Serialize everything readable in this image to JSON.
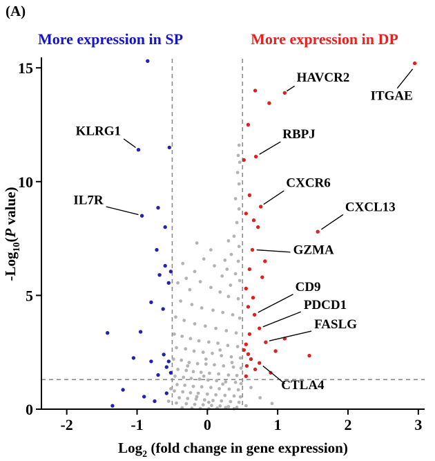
{
  "panel_label": "(A)",
  "headers": {
    "left": {
      "text": "More expression in SP",
      "color": "#1414cc"
    },
    "right": {
      "text": "More expression in DP",
      "color": "#e8211d"
    }
  },
  "chart_data": {
    "type": "scatter",
    "title": "",
    "xlabel_segments": [
      {
        "t": "Log"
      },
      {
        "t": "2",
        "sub": true
      },
      {
        "t": " (fold change in gene expression)"
      }
    ],
    "ylabel_segments": [
      {
        "t": "-Log"
      },
      {
        "t": "10",
        "sub": true
      },
      {
        "t": "("
      },
      {
        "t": "P",
        "italic": true
      },
      {
        "t": " value)"
      }
    ],
    "x_ticks": [
      -2,
      -1,
      0,
      1,
      2,
      3
    ],
    "y_ticks": [
      0,
      5,
      10,
      15
    ],
    "xlim": [
      -2.36,
      3.09
    ],
    "ylim": [
      0,
      15.4
    ],
    "grid": false,
    "thresholds": {
      "x": [
        -0.5,
        0.5
      ],
      "y": 1.3,
      "color": "#8a8a8a"
    },
    "axis_color": "#000000",
    "series": [
      {
        "name": "non-significant",
        "color": "#b3b3b3",
        "radius": 2.4,
        "points": [
          [
            0.45,
            11.6
          ],
          [
            0.44,
            11.15
          ],
          [
            0.46,
            10.85
          ],
          [
            0.43,
            10.4
          ],
          [
            0.45,
            9.9
          ],
          [
            0.4,
            9.25
          ],
          [
            0.45,
            8.8
          ],
          [
            0.42,
            8.2
          ],
          [
            0.38,
            7.6
          ],
          [
            0.45,
            7.15
          ],
          [
            0.3,
            7.4
          ],
          [
            0.34,
            6.8
          ],
          [
            0.44,
            6.5
          ],
          [
            0.28,
            6.15
          ],
          [
            0.4,
            5.95
          ],
          [
            0.46,
            5.65
          ],
          [
            0.33,
            5.45
          ],
          [
            0.21,
            5.85
          ],
          [
            0.1,
            6.3
          ],
          [
            -0.05,
            6.6
          ],
          [
            -0.18,
            6.05
          ],
          [
            -0.3,
            5.75
          ],
          [
            -0.42,
            5.55
          ],
          [
            -0.25,
            5.25
          ],
          [
            -0.1,
            5.6
          ],
          [
            0.05,
            5.35
          ],
          [
            0.18,
            5.15
          ],
          [
            0.3,
            4.95
          ],
          [
            0.44,
            4.85
          ],
          [
            -0.38,
            4.75
          ],
          [
            -0.22,
            4.6
          ],
          [
            -0.08,
            4.45
          ],
          [
            0.08,
            4.35
          ],
          [
            0.22,
            4.25
          ],
          [
            0.36,
            4.15
          ],
          [
            0.46,
            4.0
          ],
          [
            -0.45,
            4.05
          ],
          [
            -0.33,
            3.9
          ],
          [
            -0.18,
            3.75
          ],
          [
            -0.03,
            3.65
          ],
          [
            0.12,
            3.55
          ],
          [
            0.27,
            3.45
          ],
          [
            0.41,
            3.35
          ],
          [
            -0.47,
            3.3
          ],
          [
            -0.36,
            3.2
          ],
          [
            -0.24,
            3.1
          ],
          [
            -0.12,
            3.0
          ],
          [
            0.02,
            2.95
          ],
          [
            0.15,
            2.9
          ],
          [
            0.29,
            2.8
          ],
          [
            0.43,
            2.75
          ],
          [
            -0.44,
            2.7
          ],
          [
            -0.31,
            2.65
          ],
          [
            -0.19,
            2.55
          ],
          [
            -0.06,
            2.5
          ],
          [
            0.07,
            2.45
          ],
          [
            0.2,
            2.35
          ],
          [
            0.34,
            2.3
          ],
          [
            0.47,
            2.25
          ],
          [
            -0.48,
            2.2
          ],
          [
            -0.37,
            2.15
          ],
          [
            -0.26,
            2.05
          ],
          [
            -0.14,
            2.0
          ],
          [
            -0.02,
            1.98
          ],
          [
            0.1,
            1.95
          ],
          [
            0.23,
            1.9
          ],
          [
            0.37,
            1.85
          ],
          [
            0.48,
            1.8
          ],
          [
            -0.42,
            1.75
          ],
          [
            -0.3,
            1.7
          ],
          [
            -0.2,
            1.65
          ],
          [
            -0.09,
            1.62
          ],
          [
            0.03,
            1.58
          ],
          [
            0.16,
            1.55
          ],
          [
            0.3,
            1.5
          ],
          [
            0.42,
            1.48
          ],
          [
            -0.46,
            1.45
          ],
          [
            -0.34,
            1.4
          ],
          [
            -0.23,
            1.35
          ],
          [
            -0.11,
            1.32
          ],
          [
            0.01,
            1.28
          ],
          [
            0.13,
            1.25
          ],
          [
            0.26,
            1.2
          ],
          [
            0.4,
            1.18
          ],
          [
            0.48,
            1.12
          ],
          [
            -0.43,
            1.08
          ],
          [
            -0.32,
            1.05
          ],
          [
            -0.2,
            1.0
          ],
          [
            -0.08,
            0.98
          ],
          [
            0.05,
            0.95
          ],
          [
            0.17,
            0.9
          ],
          [
            0.31,
            0.88
          ],
          [
            0.44,
            0.85
          ],
          [
            -0.47,
            0.8
          ],
          [
            -0.35,
            0.76
          ],
          [
            -0.24,
            0.72
          ],
          [
            -0.13,
            0.7
          ],
          [
            0.0,
            0.66
          ],
          [
            0.12,
            0.63
          ],
          [
            0.25,
            0.6
          ],
          [
            0.38,
            0.58
          ],
          [
            0.47,
            0.54
          ],
          [
            -0.4,
            0.5
          ],
          [
            -0.28,
            0.47
          ],
          [
            -0.16,
            0.44
          ],
          [
            -0.04,
            0.41
          ],
          [
            0.08,
            0.38
          ],
          [
            0.2,
            0.36
          ],
          [
            0.33,
            0.33
          ],
          [
            0.45,
            0.3
          ],
          [
            -0.44,
            0.27
          ],
          [
            -0.3,
            0.24
          ],
          [
            -0.18,
            0.21
          ],
          [
            -0.06,
            0.19
          ],
          [
            0.06,
            0.16
          ],
          [
            0.18,
            0.14
          ],
          [
            0.3,
            0.11
          ],
          [
            0.42,
            0.08
          ],
          [
            -0.36,
            0.06
          ],
          [
            -0.22,
            0.04
          ],
          [
            -0.1,
            0.03
          ],
          [
            0.02,
            0.02
          ],
          [
            0.14,
            0.05
          ],
          [
            0.26,
            0.07
          ],
          [
            0.38,
            0.02
          ],
          [
            0.62,
            0.95
          ],
          [
            0.75,
            0.5
          ],
          [
            0.92,
            0.25
          ],
          [
            0.55,
            0.15
          ],
          [
            -0.15,
            7.3
          ],
          [
            0.05,
            7.0
          ],
          [
            -0.35,
            6.4
          ],
          [
            0.25,
            6.55
          ],
          [
            -0.02,
            2.2
          ],
          [
            0.18,
            2.6
          ],
          [
            -0.28,
            1.9
          ],
          [
            0.35,
            2.05
          ],
          [
            -0.05,
            1.45
          ],
          [
            0.22,
            1.1
          ],
          [
            -0.15,
            0.55
          ],
          [
            0.02,
            0.3
          ],
          [
            -0.52,
            0.9
          ],
          [
            -0.55,
            0.35
          ]
        ]
      },
      {
        "name": "more in SP",
        "color": "#2222b2",
        "radius": 2.7,
        "points": [
          [
            -0.85,
            15.3
          ],
          [
            -0.98,
            11.4
          ],
          [
            -0.54,
            11.5
          ],
          [
            -0.93,
            8.5
          ],
          [
            -0.7,
            8.85
          ],
          [
            -0.6,
            8.0
          ],
          [
            -0.72,
            7.0
          ],
          [
            -0.6,
            6.3
          ],
          [
            -0.68,
            5.9
          ],
          [
            -0.52,
            6.05
          ],
          [
            -0.55,
            5.55
          ],
          [
            -0.8,
            4.7
          ],
          [
            -0.63,
            4.4
          ],
          [
            -1.42,
            3.35
          ],
          [
            -0.95,
            3.4
          ],
          [
            -1.05,
            2.25
          ],
          [
            -0.8,
            2.1
          ],
          [
            -0.62,
            2.4
          ],
          [
            -0.55,
            2.1
          ],
          [
            -0.58,
            1.85
          ],
          [
            -0.52,
            1.6
          ],
          [
            -0.7,
            1.5
          ],
          [
            -1.2,
            0.85
          ],
          [
            -0.9,
            0.55
          ],
          [
            -1.35,
            0.15
          ],
          [
            -0.75,
            0.35
          ],
          [
            -0.58,
            0.7
          ]
        ]
      },
      {
        "name": "more in DP",
        "color": "#e0201c",
        "radius": 2.7,
        "points": [
          [
            2.95,
            15.2
          ],
          [
            1.1,
            13.9
          ],
          [
            0.68,
            14.0
          ],
          [
            0.88,
            13.45
          ],
          [
            0.58,
            12.5
          ],
          [
            0.69,
            11.1
          ],
          [
            0.52,
            10.95
          ],
          [
            0.6,
            9.4
          ],
          [
            0.76,
            8.9
          ],
          [
            0.55,
            8.6
          ],
          [
            0.66,
            8.3
          ],
          [
            0.72,
            8.0
          ],
          [
            1.57,
            7.8
          ],
          [
            0.64,
            7.0
          ],
          [
            0.82,
            6.5
          ],
          [
            0.6,
            6.15
          ],
          [
            0.78,
            5.8
          ],
          [
            0.55,
            5.3
          ],
          [
            0.65,
            4.9
          ],
          [
            0.58,
            4.5
          ],
          [
            0.67,
            4.15
          ],
          [
            0.74,
            3.55
          ],
          [
            1.1,
            3.1
          ],
          [
            0.83,
            2.94
          ],
          [
            0.6,
            3.3
          ],
          [
            0.55,
            2.85
          ],
          [
            0.52,
            2.6
          ],
          [
            1.45,
            2.35
          ],
          [
            0.74,
            2.03
          ],
          [
            0.62,
            2.2
          ],
          [
            0.56,
            1.9
          ],
          [
            0.68,
            1.75
          ],
          [
            0.9,
            1.6
          ],
          [
            0.55,
            1.45
          ],
          [
            0.97,
            2.55
          ],
          [
            0.58,
            2.42
          ]
        ]
      }
    ],
    "annotations": [
      {
        "text": "HAVCR2",
        "point": [
          1.1,
          13.9
        ],
        "label": [
          1.27,
          14.4
        ],
        "anchor": "start",
        "leader": [
          [
            1.24,
            14.2
          ],
          [
            1.13,
            13.98
          ]
        ]
      },
      {
        "text": "ITGAE",
        "point": [
          2.95,
          15.2
        ],
        "label": [
          2.32,
          13.6
        ],
        "anchor": "start",
        "leader": [
          [
            2.7,
            14.1
          ],
          [
            2.92,
            14.95
          ]
        ]
      },
      {
        "text": "RBPJ",
        "point": [
          0.69,
          11.1
        ],
        "label": [
          1.07,
          11.9
        ],
        "anchor": "start",
        "leader": [
          [
            1.04,
            11.75
          ],
          [
            0.74,
            11.2
          ]
        ]
      },
      {
        "text": "CXCR6",
        "point": [
          0.76,
          8.9
        ],
        "label": [
          1.12,
          9.76
        ],
        "anchor": "start",
        "leader": [
          [
            1.09,
            9.6
          ],
          [
            0.8,
            9.0
          ]
        ]
      },
      {
        "text": "CXCL13",
        "point": [
          1.57,
          7.8
        ],
        "label": [
          1.96,
          8.7
        ],
        "anchor": "start",
        "leader": [
          [
            1.93,
            8.55
          ],
          [
            1.62,
            7.9
          ]
        ]
      },
      {
        "text": "GZMA",
        "point": [
          0.64,
          7.0
        ],
        "label": [
          1.22,
          6.82
        ],
        "anchor": "start",
        "leader": [
          [
            1.18,
            6.9
          ],
          [
            0.7,
            7.0
          ]
        ]
      },
      {
        "text": "CD9",
        "point": [
          0.67,
          4.15
        ],
        "label": [
          1.25,
          5.2
        ],
        "anchor": "start",
        "leader": [
          [
            1.22,
            5.05
          ],
          [
            0.72,
            4.25
          ]
        ]
      },
      {
        "text": "PDCD1",
        "point": [
          0.74,
          3.55
        ],
        "label": [
          1.37,
          4.4
        ],
        "anchor": "start",
        "leader": [
          [
            1.33,
            4.28
          ],
          [
            0.79,
            3.62
          ]
        ]
      },
      {
        "text": "FASLG",
        "point": [
          0.83,
          2.94
        ],
        "label": [
          1.52,
          3.55
        ],
        "anchor": "start",
        "leader": [
          [
            1.48,
            3.43
          ],
          [
            0.88,
            3.0
          ]
        ]
      },
      {
        "text": "CTLA4",
        "point": [
          0.74,
          2.03
        ],
        "label": [
          1.05,
          0.88
        ],
        "anchor": "start",
        "leader": [
          [
            1.1,
            1.12
          ],
          [
            0.79,
            1.9
          ]
        ]
      },
      {
        "text": "KLRG1",
        "point": [
          -0.98,
          11.4
        ],
        "label": [
          -1.23,
          12.05
        ],
        "anchor": "end",
        "leader": [
          [
            -1.19,
            11.88
          ],
          [
            -1.02,
            11.5
          ]
        ]
      },
      {
        "text": "IL7R",
        "point": [
          -0.93,
          8.5
        ],
        "label": [
          -1.48,
          9.0
        ],
        "anchor": "end",
        "leader": [
          [
            -1.44,
            8.9
          ],
          [
            -0.98,
            8.55
          ]
        ]
      }
    ]
  }
}
